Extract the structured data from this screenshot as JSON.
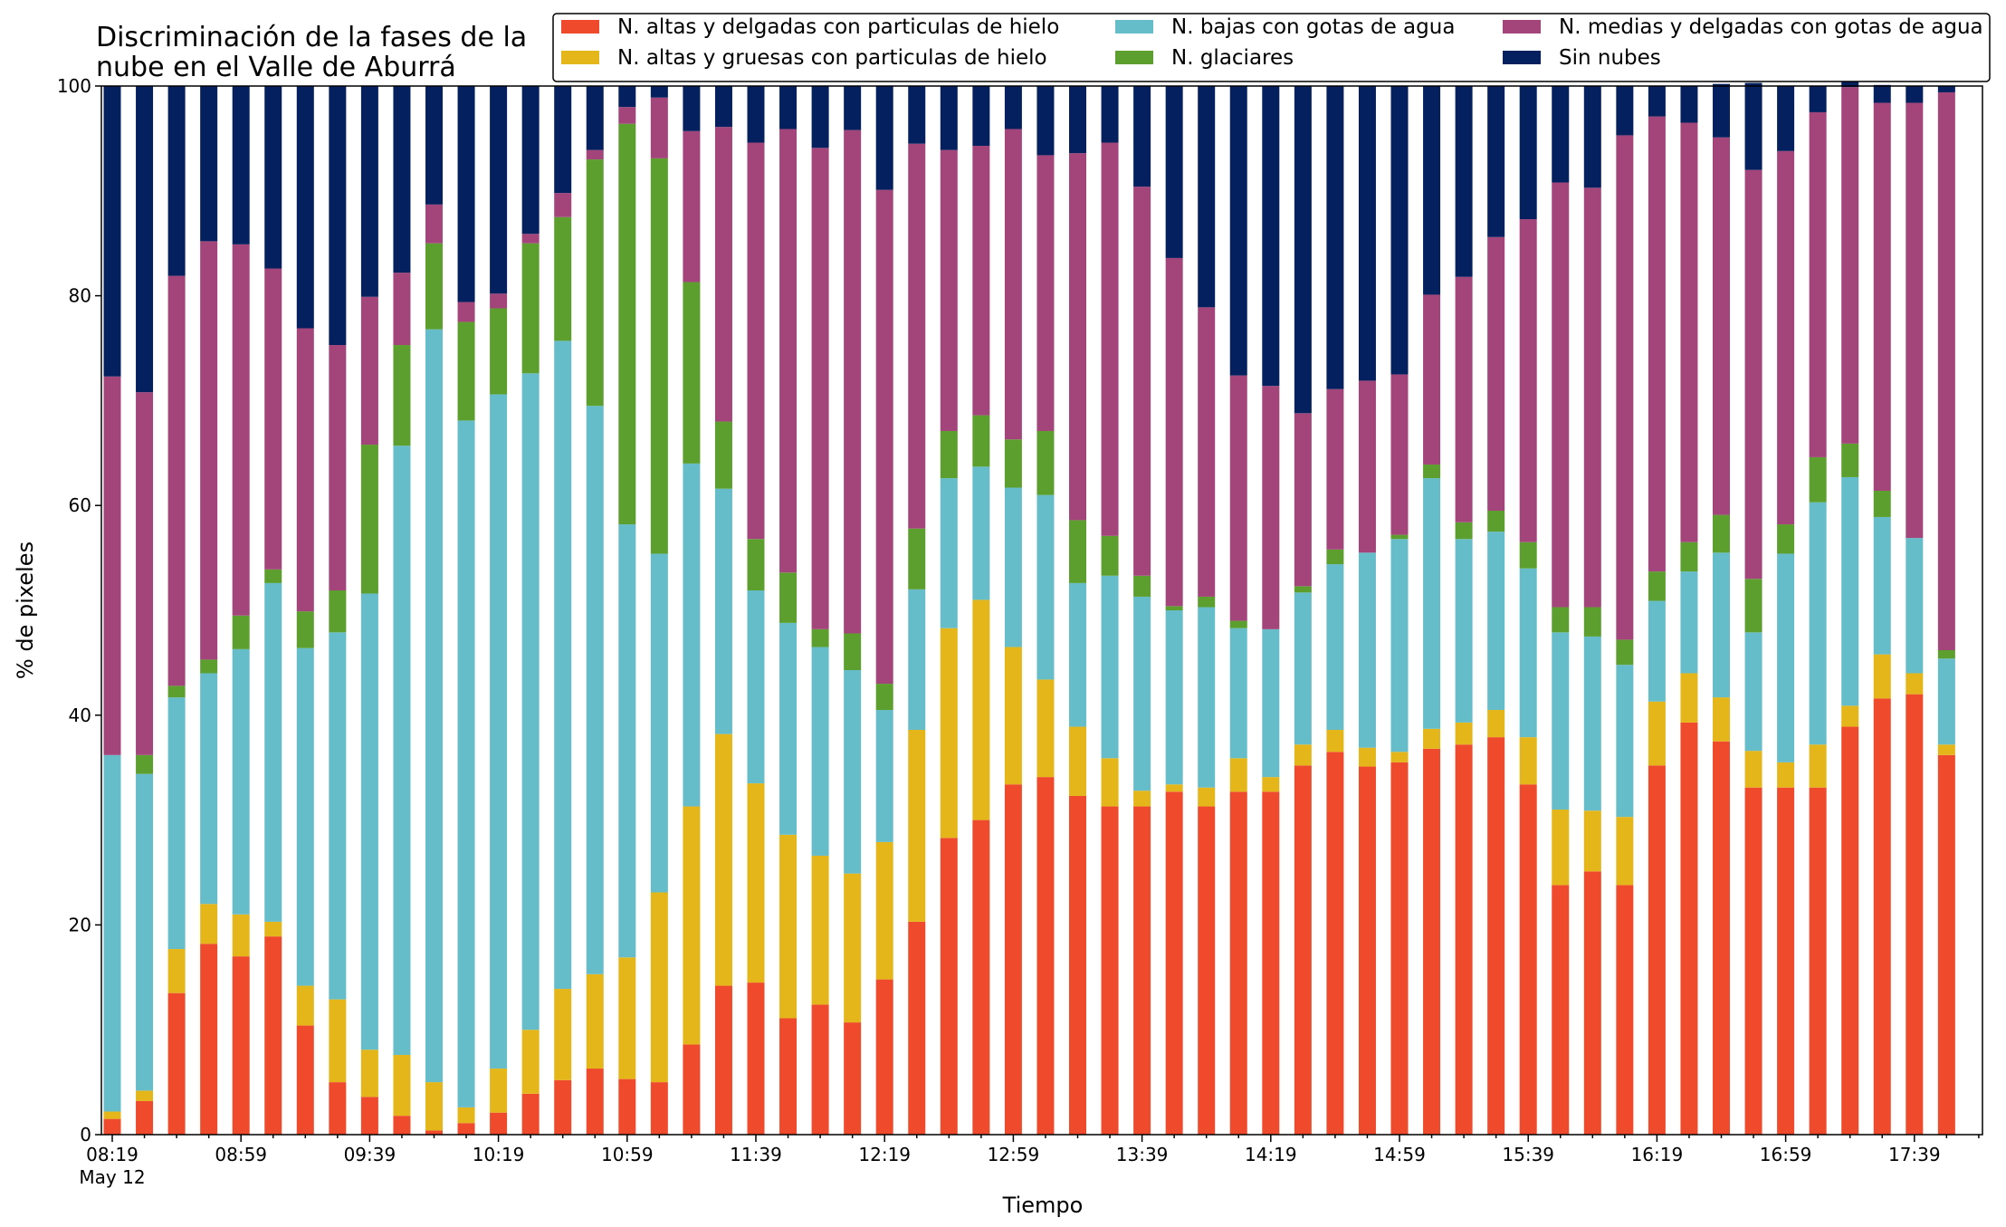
{
  "chart_data": {
    "type": "bar",
    "stacked": true,
    "title_lines": [
      "Discriminación de la fases de la",
      "nube en el Valle de Aburrá"
    ],
    "xlabel": "Tiempo",
    "ylabel": "% de pixeles",
    "ylim": [
      0,
      100
    ],
    "yticks": [
      "0",
      "20",
      "40",
      "60",
      "80",
      "100"
    ],
    "xtick_labels": [
      "08:19",
      "08:59",
      "09:39",
      "10:19",
      "10:59",
      "11:39",
      "12:19",
      "12:59",
      "13:39",
      "14:19",
      "14:59",
      "15:39",
      "16:19",
      "16:59",
      "17:39"
    ],
    "xtick_date": "May 12",
    "grid": false,
    "legend_position": "top-right",
    "colors": {
      "altas_delgadas": "#ef4a2b",
      "altas_gruesas": "#e5b619",
      "bajas": "#66bdca",
      "glaciares": "#5c9f2e",
      "medias_delgadas": "#a3457a",
      "sin_nubes": "#04205e"
    },
    "legend_entries": [
      {
        "key": "altas_delgadas",
        "name": "N. altas y delgadas con particulas de hielo"
      },
      {
        "key": "bajas",
        "name": "N. bajas con gotas de agua"
      },
      {
        "key": "medias_delgadas",
        "name": "N. medias y delgadas con gotas de agua"
      },
      {
        "key": "altas_gruesas",
        "name": "N. altas y gruesas con particulas de hielo"
      },
      {
        "key": "glaciares",
        "name": "N. glaciares"
      },
      {
        "key": "sin_nubes",
        "name": "Sin nubes"
      }
    ],
    "stack_order": [
      "altas_delgadas",
      "altas_gruesas",
      "bajas",
      "glaciares",
      "medias_delgadas",
      "sin_nubes"
    ],
    "series": [
      {
        "key": "altas_delgadas",
        "name": "N. altas y delgadas con particulas de hielo",
        "values": [
          1.5,
          3.2,
          13.5,
          18.2,
          17.0,
          18.9,
          10.4,
          5.0,
          3.6,
          1.8,
          0.4,
          1.1,
          2.1,
          3.9,
          5.2,
          6.3,
          5.3,
          5.0,
          8.6,
          14.2,
          14.5,
          11.1,
          12.4,
          10.7,
          14.8,
          20.3,
          28.3,
          30.0,
          33.4,
          34.1,
          32.3,
          31.3,
          31.3,
          32.7,
          31.3,
          32.7,
          32.7,
          35.2,
          36.5,
          35.1,
          35.5,
          36.8,
          37.2,
          37.9,
          33.4,
          23.8,
          25.1,
          23.8,
          35.2,
          39.3,
          37.5,
          33.1,
          33.1,
          33.1,
          38.9,
          41.6,
          42.0,
          36.2
        ]
      },
      {
        "key": "altas_gruesas",
        "name": "N. altas y gruesas con particulas de hielo",
        "values": [
          0.7,
          1.0,
          4.2,
          3.8,
          4.0,
          1.4,
          3.8,
          7.9,
          4.5,
          5.8,
          4.6,
          1.5,
          4.2,
          6.1,
          8.7,
          9.0,
          11.6,
          18.1,
          22.7,
          24.0,
          19.0,
          17.5,
          14.2,
          14.2,
          13.1,
          18.3,
          20.0,
          21.0,
          13.1,
          9.3,
          6.6,
          4.6,
          1.5,
          0.7,
          1.8,
          3.2,
          1.4,
          2.0,
          2.1,
          1.8,
          1.0,
          1.9,
          2.1,
          2.6,
          4.5,
          7.2,
          5.8,
          6.5,
          6.1,
          4.7,
          4.2,
          3.5,
          2.4,
          4.1,
          2.0,
          4.2,
          2.0,
          1.0
        ]
      },
      {
        "key": "bajas",
        "name": "N. bajas con gotas de agua",
        "values": [
          34.0,
          30.2,
          24.0,
          22.0,
          25.3,
          32.3,
          32.2,
          35.0,
          43.5,
          58.1,
          71.8,
          65.5,
          64.3,
          62.6,
          61.8,
          54.2,
          41.3,
          32.3,
          32.7,
          23.4,
          18.4,
          20.2,
          19.9,
          19.4,
          12.6,
          13.4,
          14.3,
          12.7,
          15.2,
          17.6,
          13.7,
          17.4,
          18.5,
          16.6,
          17.2,
          12.4,
          14.1,
          14.5,
          15.8,
          18.6,
          20.3,
          23.9,
          17.5,
          17.0,
          16.1,
          16.9,
          16.6,
          14.5,
          9.6,
          9.7,
          13.8,
          11.3,
          19.9,
          23.1,
          21.8,
          13.1,
          12.9,
          8.2
        ]
      },
      {
        "key": "glaciares",
        "name": "N. glaciares",
        "values": [
          0.0,
          1.8,
          1.1,
          1.3,
          3.2,
          1.3,
          3.5,
          4.0,
          14.2,
          9.6,
          8.2,
          9.4,
          8.2,
          12.4,
          11.8,
          23.5,
          38.2,
          37.7,
          17.3,
          6.4,
          4.9,
          4.8,
          1.7,
          3.5,
          2.5,
          5.8,
          4.5,
          4.9,
          4.6,
          6.1,
          6.0,
          3.8,
          2.0,
          0.4,
          1.0,
          0.7,
          0.0,
          0.6,
          1.4,
          0.0,
          0.4,
          1.3,
          1.6,
          2.0,
          2.5,
          2.4,
          2.8,
          2.4,
          2.8,
          2.8,
          3.6,
          5.1,
          2.8,
          4.3,
          3.2,
          2.5,
          0.0,
          0.8
        ]
      },
      {
        "key": "medias_delgadas",
        "name": "N. medias y delgadas con gotas de agua",
        "values": [
          36.1,
          34.6,
          39.1,
          39.9,
          35.4,
          28.7,
          27.0,
          23.4,
          14.1,
          6.9,
          3.7,
          1.9,
          1.4,
          0.9,
          2.3,
          0.9,
          1.6,
          5.8,
          14.4,
          28.1,
          37.8,
          42.3,
          45.9,
          48.0,
          47.1,
          36.7,
          26.8,
          25.7,
          29.6,
          26.3,
          35.0,
          37.5,
          37.1,
          33.2,
          27.6,
          23.4,
          23.2,
          16.5,
          15.3,
          16.4,
          15.3,
          16.2,
          23.4,
          26.1,
          30.8,
          40.5,
          40.0,
          48.1,
          43.4,
          40.0,
          36.0,
          39.0,
          35.6,
          32.9,
          34.0,
          37.0,
          41.5,
          53.2
        ]
      },
      {
        "key": "sin_nubes",
        "name": "Sin nubes",
        "values": [
          27.7,
          29.2,
          18.1,
          14.8,
          15.1,
          17.4,
          23.1,
          24.7,
          20.1,
          17.8,
          11.3,
          20.6,
          19.8,
          14.1,
          10.2,
          6.1,
          2.0,
          1.1,
          4.3,
          3.9,
          5.4,
          4.1,
          5.9,
          4.2,
          9.9,
          5.5,
          6.1,
          5.7,
          4.1,
          6.6,
          6.4,
          5.4,
          9.6,
          16.4,
          21.1,
          27.6,
          28.6,
          31.2,
          28.9,
          28.1,
          27.5,
          19.9,
          18.2,
          14.4,
          12.7,
          9.2,
          9.7,
          4.7,
          2.9,
          3.5,
          5.1,
          8.3,
          6.2,
          2.5,
          2.1,
          1.7,
          1.6,
          0.6
        ]
      }
    ]
  }
}
